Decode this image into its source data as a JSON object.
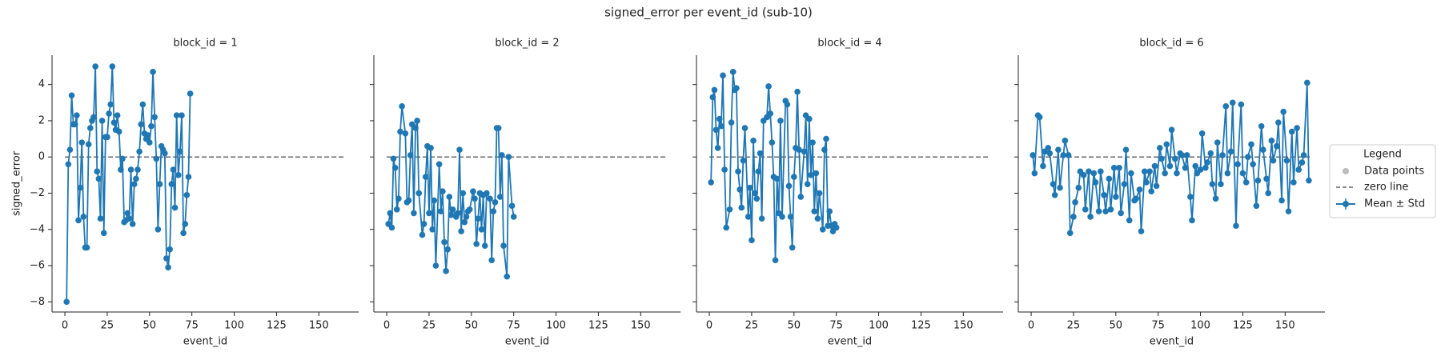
{
  "title": "signed_error per event_id (sub-10)",
  "legend": {
    "title": "Legend",
    "entries": [
      "Data points",
      "zero line",
      "Mean ± Std"
    ]
  },
  "chart_data": [
    {
      "type": "line",
      "title": "block_id = 1",
      "x_label": "event_id",
      "y_label": "signed_error",
      "show_ytick_labels": true,
      "xlim": [
        -7.6,
        173.5
      ],
      "ylim": [
        -8.56,
        5.62
      ],
      "xticks": [
        0,
        25,
        50,
        75,
        100,
        125,
        150
      ],
      "yticks": [
        {
          "value": -8,
          "label": "−8"
        },
        {
          "value": -6,
          "label": "−6"
        },
        {
          "value": -4,
          "label": "−4"
        },
        {
          "value": -2,
          "label": "−2"
        },
        0,
        2,
        4
      ],
      "zero_line": {
        "y": 0,
        "x": [
          0,
          165
        ],
        "color": "#666666"
      },
      "series": [
        {
          "color": "#1f77b4",
          "x": [
            1,
            2,
            3,
            4,
            5,
            6,
            7,
            8,
            9,
            10,
            11,
            12,
            13,
            14,
            15,
            16,
            17,
            18,
            19,
            20,
            21,
            22,
            23,
            24,
            25,
            26,
            27,
            28,
            29,
            30,
            31,
            32,
            33,
            34,
            35,
            36,
            37,
            38,
            39,
            40,
            41,
            42,
            43,
            44,
            45,
            46,
            47,
            48,
            49,
            50,
            51,
            52,
            53,
            54,
            55,
            56,
            57,
            58,
            59,
            60,
            61,
            62,
            63,
            64,
            65,
            66,
            67,
            68,
            69,
            70,
            71,
            72,
            73,
            74
          ],
          "values": [
            -8.0,
            -0.4,
            0.4,
            3.4,
            1.8,
            1.8,
            2.3,
            -3.5,
            -1.7,
            0.8,
            -3.3,
            -5.0,
            -5.0,
            0.7,
            1.6,
            2.0,
            2.2,
            5.0,
            -0.8,
            -1.2,
            -3.4,
            2.0,
            -4.2,
            1.1,
            1.1,
            2.4,
            2.9,
            5.0,
            1.9,
            1.5,
            2.3,
            1.4,
            -0.7,
            -0.1,
            -3.6,
            -3.5,
            -3.1,
            -3.4,
            -0.7,
            -3.7,
            -1.5,
            -1.2,
            -0.7,
            0.3,
            1.8,
            2.9,
            1.3,
            1.0,
            1.2,
            0.8,
            1.7,
            4.7,
            2.2,
            -0.1,
            -4.0,
            -1.5,
            0.6,
            0.4,
            0.2,
            -5.6,
            -6.1,
            -5.1,
            -1.5,
            -0.7,
            -2.8,
            2.3,
            -1.0,
            0.3,
            2.3,
            -4.2,
            -3.7,
            -2.1,
            -1.1,
            3.5
          ]
        }
      ]
    },
    {
      "type": "line",
      "title": "block_id = 2",
      "x_label": "event_id",
      "show_ytick_labels": false,
      "xlim": [
        -7.6,
        173.5
      ],
      "ylim": [
        -8.56,
        5.62
      ],
      "xticks": [
        0,
        25,
        50,
        75,
        100,
        125,
        150
      ],
      "yticks": [
        -8,
        -6,
        -4,
        -2,
        0,
        2,
        4
      ],
      "zero_line": {
        "y": 0,
        "x": [
          0,
          165
        ],
        "color": "#666666"
      },
      "series": [
        {
          "color": "#1f77b4",
          "x": [
            1,
            2,
            3,
            4,
            5,
            6,
            7,
            8,
            9,
            11,
            12,
            13,
            14,
            15,
            16,
            17,
            18,
            19,
            21,
            22,
            23,
            24,
            25,
            26,
            27,
            28,
            29,
            31,
            32,
            33,
            34,
            35,
            36,
            37,
            38,
            39,
            41,
            42,
            43,
            44,
            45,
            46,
            47,
            48,
            49,
            51,
            52,
            53,
            54,
            55,
            56,
            57,
            58,
            59,
            61,
            62,
            63,
            64,
            65,
            66,
            67,
            68,
            69,
            71,
            72,
            74,
            75
          ],
          "values": [
            -3.7,
            -3.1,
            -3.9,
            -0.1,
            -0.6,
            -2.9,
            -2.3,
            1.4,
            2.8,
            1.3,
            -2.5,
            -2.4,
            0.1,
            1.8,
            -3.1,
            1.6,
            2.0,
            -2.0,
            -4.3,
            -3.7,
            -1.1,
            0.6,
            -3.1,
            0.5,
            -4.0,
            -2.4,
            -6.0,
            -0.4,
            -3.0,
            -1.9,
            -4.7,
            -6.3,
            -5.1,
            -2.2,
            -3.2,
            -2.9,
            -3.3,
            -3.1,
            0.4,
            -4.1,
            -2.0,
            -3.6,
            -3.3,
            -3.0,
            -2.9,
            -1.9,
            -2.3,
            -4.8,
            -3.4,
            -2.0,
            -4.0,
            -2.1,
            -4.9,
            -2.0,
            -2.3,
            -5.7,
            -3.0,
            -2.5,
            1.6,
            1.6,
            -2.2,
            0.1,
            -4.9,
            -6.6,
            0.0,
            -2.7,
            -3.3
          ]
        }
      ]
    },
    {
      "type": "line",
      "title": "block_id = 4",
      "x_label": "event_id",
      "show_ytick_labels": false,
      "xlim": [
        -7.6,
        173.5
      ],
      "ylim": [
        -8.56,
        5.62
      ],
      "xticks": [
        0,
        25,
        50,
        75,
        100,
        125,
        150
      ],
      "yticks": [
        -8,
        -6,
        -4,
        -2,
        0,
        2,
        4
      ],
      "zero_line": {
        "y": 0,
        "x": [
          0,
          165
        ],
        "color": "#666666"
      },
      "series": [
        {
          "color": "#1f77b4",
          "x": [
            1,
            2,
            3,
            4,
            5,
            6,
            7,
            8,
            9,
            10,
            12,
            13,
            14,
            15,
            16,
            17,
            18,
            19,
            20,
            21,
            23,
            24,
            25,
            26,
            27,
            28,
            29,
            30,
            31,
            32,
            34,
            35,
            36,
            37,
            38,
            39,
            40,
            41,
            42,
            43,
            45,
            46,
            47,
            48,
            49,
            50,
            51,
            52,
            53,
            54,
            56,
            57,
            58,
            59,
            60,
            61,
            62,
            63,
            64,
            65,
            67,
            68,
            69,
            70,
            71,
            72,
            73,
            74,
            75
          ],
          "values": [
            -1.4,
            3.3,
            3.7,
            1.5,
            0.5,
            2.1,
            1.7,
            4.5,
            -0.7,
            -3.9,
            -2.9,
            1.9,
            4.7,
            3.7,
            3.8,
            -0.8,
            -1.8,
            -2.8,
            -0.2,
            1.6,
            -3.3,
            -1.7,
            -4.6,
            0.9,
            -2.0,
            -2.3,
            -0.8,
            0.2,
            -3.4,
            2.0,
            2.2,
            3.9,
            2.4,
            0.8,
            -1.1,
            -5.7,
            -1.2,
            -3.1,
            2.0,
            -3.3,
            3.1,
            2.9,
            -1.6,
            -3.3,
            -5.0,
            -1.1,
            0.5,
            3.6,
            0.4,
            -2.2,
            0.3,
            2.3,
            -1.5,
            2.1,
            -1.0,
            0.8,
            -3.0,
            -0.9,
            -3.4,
            -2.0,
            -4.0,
            0.4,
            1.0,
            -3.8,
            -3.0,
            -3.8,
            -4.1,
            -3.7,
            -3.9
          ]
        }
      ]
    },
    {
      "type": "line",
      "title": "block_id = 6",
      "x_label": "event_id",
      "show_ytick_labels": false,
      "xlim": [
        -7.6,
        173.5
      ],
      "ylim": [
        -8.56,
        5.62
      ],
      "xticks": [
        0,
        25,
        50,
        75,
        100,
        125,
        150
      ],
      "yticks": [
        -8,
        -6,
        -4,
        -2,
        0,
        2,
        4
      ],
      "zero_line": {
        "y": 0,
        "x": [
          0,
          165
        ],
        "color": "#666666"
      },
      "series": [
        {
          "color": "#1f77b4",
          "x": [
            1,
            2,
            4,
            5,
            7,
            8,
            10,
            11,
            13,
            14,
            16,
            17,
            19,
            20,
            22,
            23,
            25,
            26,
            28,
            29,
            31,
            32,
            34,
            35,
            37,
            38,
            40,
            41,
            43,
            44,
            46,
            47,
            49,
            50,
            52,
            53,
            55,
            56,
            58,
            59,
            61,
            62,
            64,
            65,
            67,
            68,
            70,
            71,
            73,
            74,
            76,
            77,
            79,
            80,
            82,
            83,
            85,
            86,
            88,
            89,
            91,
            92,
            94,
            95,
            97,
            98,
            100,
            101,
            103,
            104,
            106,
            107,
            109,
            110,
            112,
            113,
            115,
            116,
            118,
            119,
            121,
            122,
            124,
            125,
            127,
            128,
            130,
            131,
            133,
            134,
            136,
            137,
            139,
            140,
            142,
            143,
            145,
            146,
            148,
            149,
            151,
            152,
            154,
            155,
            157,
            158,
            160,
            161,
            163,
            164
          ],
          "values": [
            0.1,
            -0.9,
            2.3,
            2.2,
            -0.5,
            0.3,
            0.5,
            0.2,
            -1.5,
            -2.1,
            0.4,
            -1.7,
            0.1,
            0.9,
            0.1,
            -4.2,
            -3.3,
            -2.5,
            -1.7,
            -0.8,
            -1.0,
            -2.9,
            -0.8,
            -3.3,
            -0.9,
            -1.4,
            -3.0,
            -0.8,
            -2.1,
            -3.0,
            -1.2,
            -2.9,
            -0.6,
            -2.2,
            -0.6,
            -3.1,
            -1.5,
            0.4,
            -3.5,
            -0.9,
            -2.4,
            -2.3,
            -1.8,
            -4.1,
            -0.8,
            -1.4,
            -0.8,
            -1.9,
            -0.5,
            -1.6,
            0.5,
            -0.1,
            -0.9,
            0.7,
            -0.5,
            1.5,
            -0.1,
            -0.9,
            0.2,
            0.1,
            -0.6,
            0.1,
            -2.2,
            -3.5,
            -0.5,
            -0.9,
            -0.7,
            1.3,
            -0.6,
            -0.3,
            0.2,
            -1.5,
            -2.3,
            0.8,
            -1.5,
            0.1,
            2.8,
            -0.9,
            0.3,
            3.0,
            -3.8,
            -0.4,
            2.9,
            -0.9,
            -1.4,
            0.0,
            0.7,
            -0.4,
            -2.7,
            -1.3,
            1.7,
            0.4,
            -1.2,
            -2.0,
            0.9,
            -0.2,
            0.6,
            1.9,
            -2.4,
            2.5,
            -0.2,
            -3.0,
            1.4,
            -1.4,
            1.6,
            -0.7,
            -0.3,
            0.1,
            4.1,
            -1.3
          ]
        }
      ]
    }
  ]
}
